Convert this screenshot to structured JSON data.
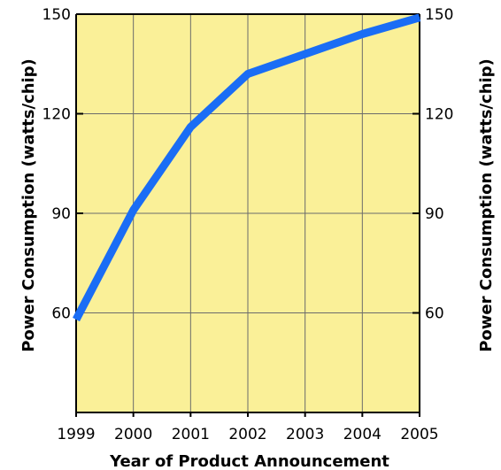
{
  "chart_data": {
    "type": "line",
    "title": "",
    "xlabel": "Year of Product Announcement",
    "ylabel": "Power Consumption (watts/chip)",
    "ylabel_right": "Power Consumption (watts/chip)",
    "x": [
      1999,
      2000,
      2001,
      2002,
      2003,
      2004,
      2005
    ],
    "x_tick_labels": [
      "1999",
      "2000",
      "2001",
      "2002",
      "2003",
      "2004",
      "2005"
    ],
    "xlim": [
      1999,
      2005
    ],
    "ylim": [
      30,
      150
    ],
    "y_ticks": [
      60,
      90,
      120,
      150
    ],
    "y_tick_labels": [
      "60",
      "90",
      "120",
      "150"
    ],
    "grid": true,
    "series": [
      {
        "values": [
          58,
          91,
          116,
          132,
          138,
          144,
          149
        ]
      }
    ],
    "colors": {
      "plot_background": "#faf098",
      "grid": "#6b6b6b",
      "axis": "#000000",
      "line": "#1a6df5"
    }
  }
}
